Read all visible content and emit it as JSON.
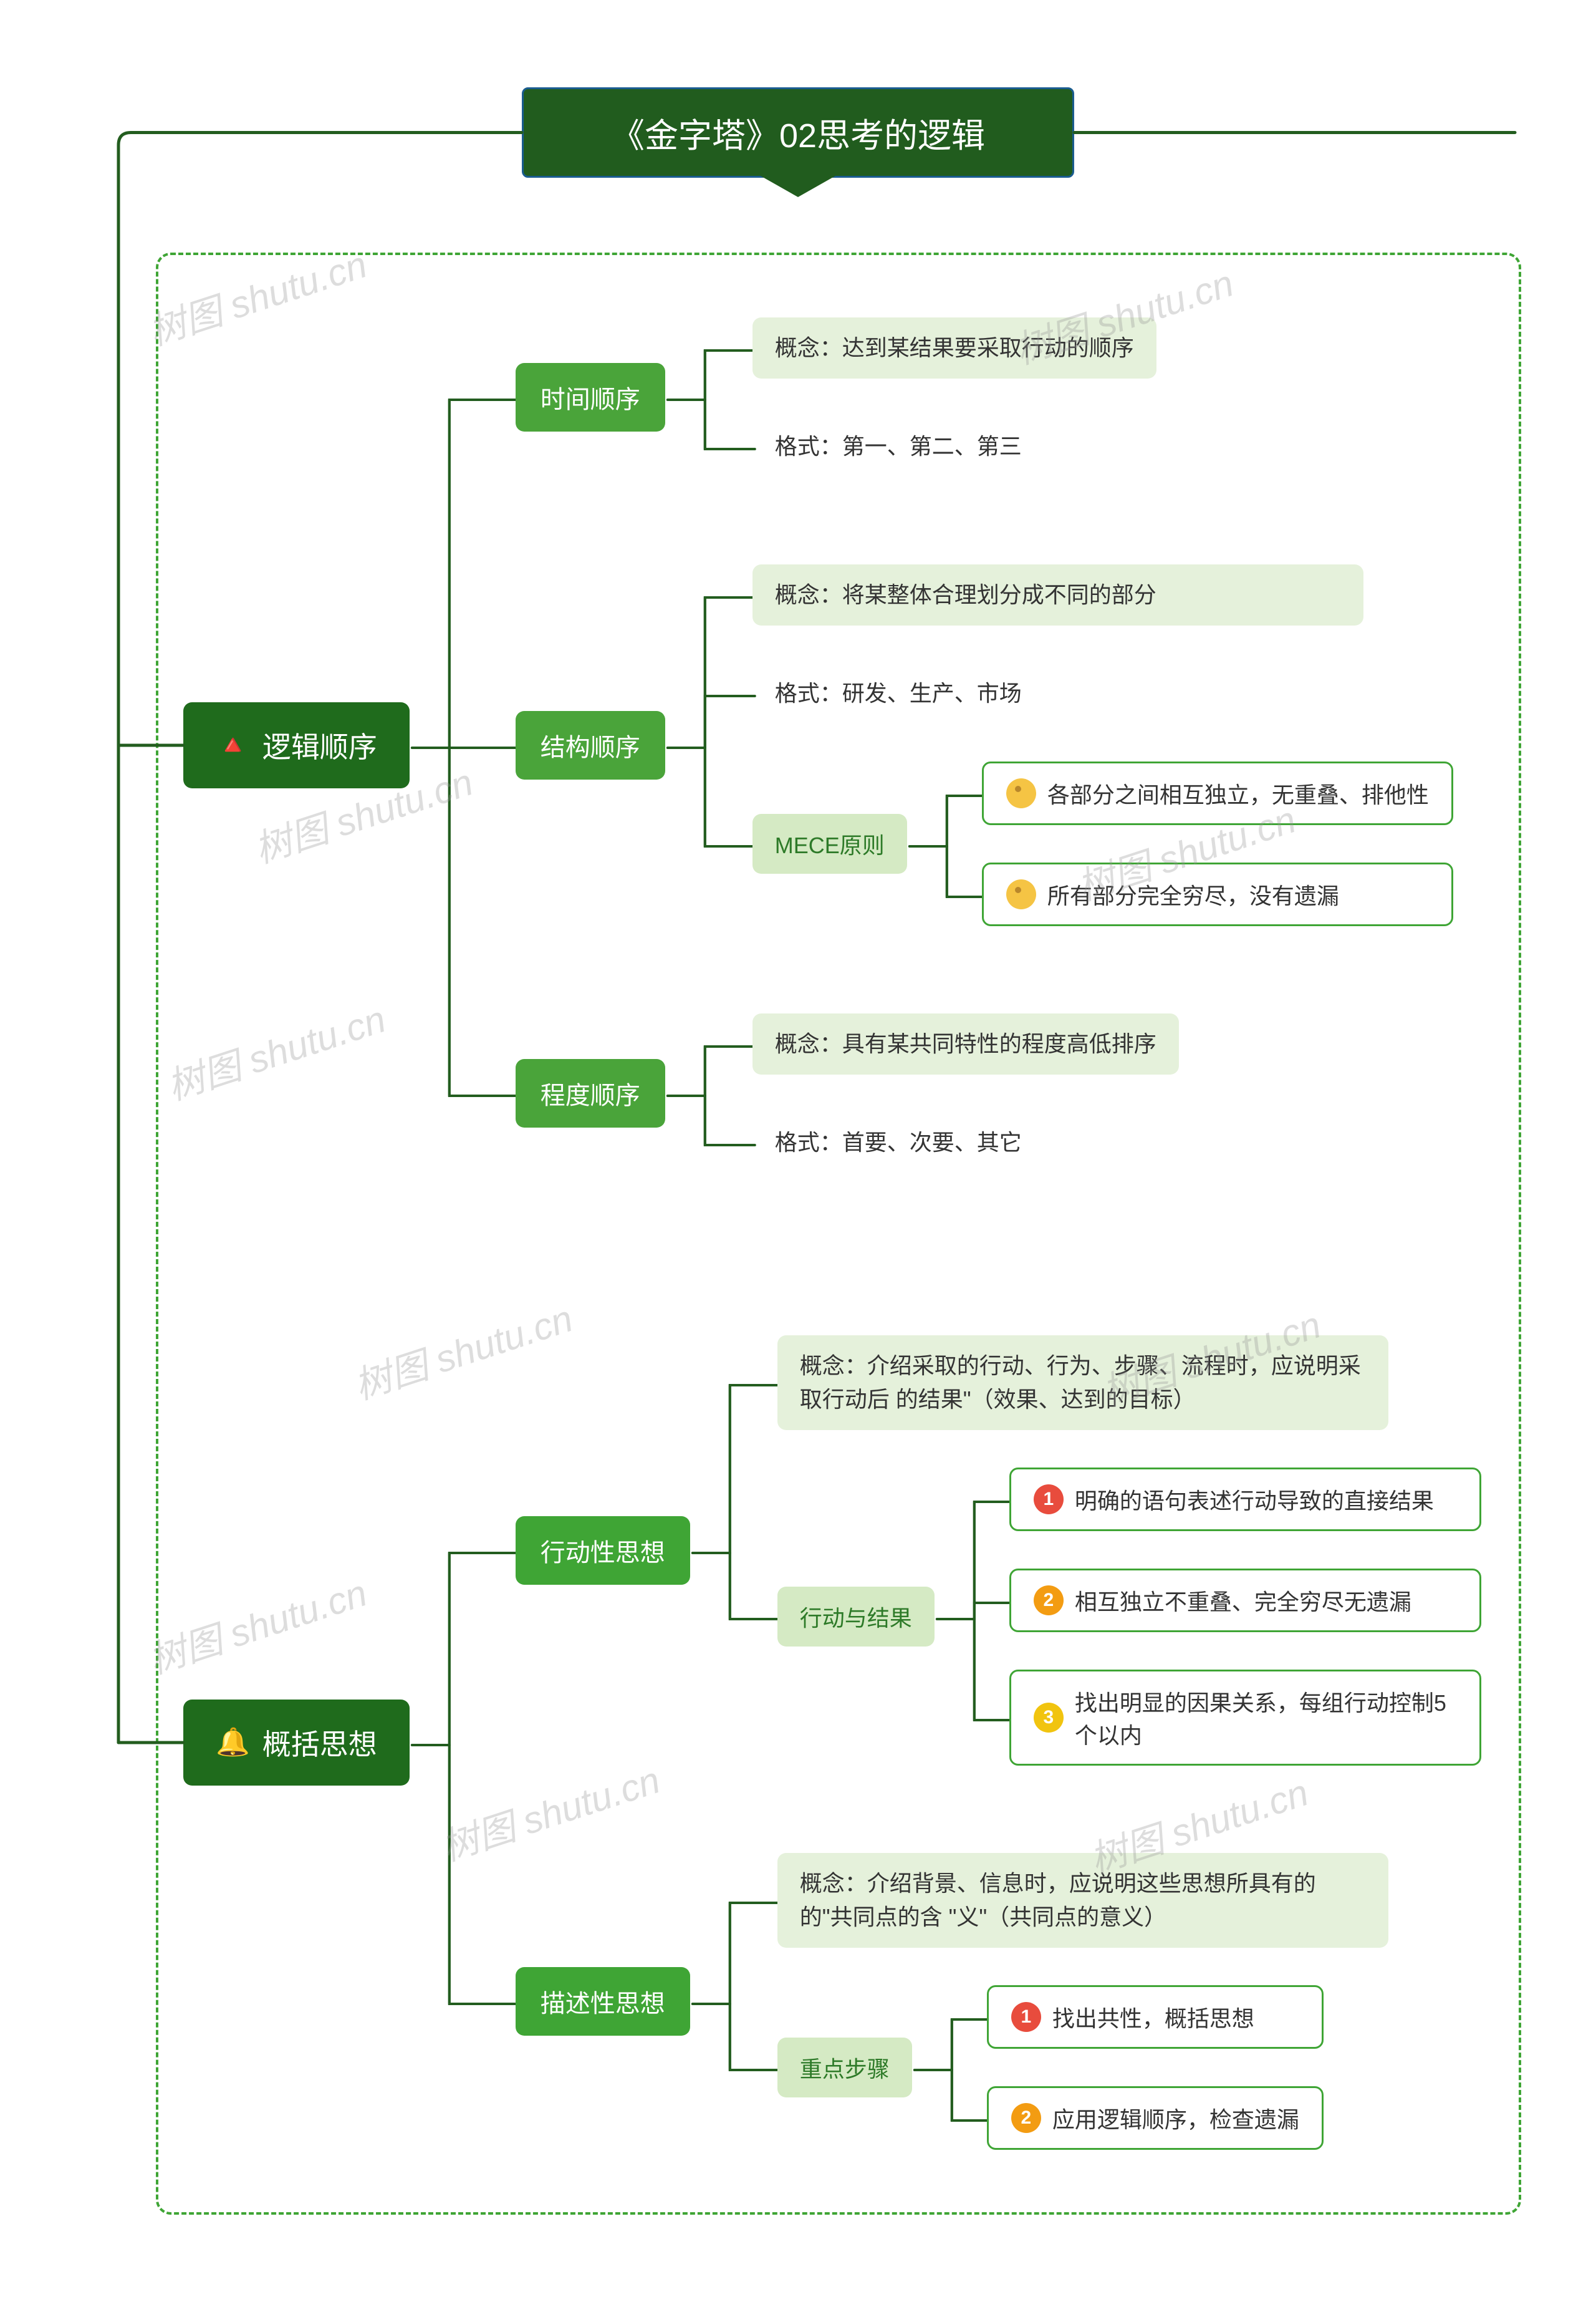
{
  "title": "《金字塔》02思考的逻辑",
  "colors": {
    "title_bg": "#215c1e",
    "l1_bg": "#1f6b1c",
    "l2_time": "#4aa43a",
    "l2_struct": "#4aa43a",
    "l2_degree": "#4aa43a",
    "l2_action": "#3fa535",
    "l2_desc": "#3fa535",
    "l3_mece_bg": "#d5eac4",
    "l3_mece_text": "#2d7a28",
    "l3_actres_bg": "#d5eac4",
    "l3_actres_text": "#2d7a28",
    "l3_step_bg": "#d5eac4",
    "l3_step_text": "#2d7a28",
    "leaf_bg": "#e5f1db",
    "border_green": "#3fa535",
    "connector": "#235d1f",
    "dash_border": "#3fa535",
    "circ_red": "#e84c3d",
    "circ_orange": "#f39c12",
    "circ_yellow": "#f1c40f",
    "circ_dot": "#f5c444"
  },
  "fontsize": {
    "title": 54,
    "l1": 46,
    "l2": 40,
    "l3": 36,
    "leaf": 36
  },
  "watermark_text": "树图 shutu.cn",
  "sections": [
    {
      "icon": "🔺",
      "label": "逻辑顺序",
      "children": [
        {
          "label": "时间顺序",
          "bg": "#4aa43a",
          "leaves": [
            {
              "text": "概念：达到某结果要采取行动的顺序",
              "style": "bg-e9"
            },
            {
              "text": "格式：第一、第二、第三",
              "style": "plain"
            }
          ]
        },
        {
          "label": "结构顺序",
          "bg": "#4aa43a",
          "leaves": [
            {
              "text": "概念：将某整体合理划分成不同的部分",
              "style": "bg-e9"
            },
            {
              "text": "格式：研发、生产、市场",
              "style": "plain"
            }
          ],
          "sub": {
            "label": "MECE原则",
            "bg": "#d5eac4",
            "color": "#2d7a28",
            "leaves": [
              {
                "icon": "dot",
                "text": "各部分之间相互独立，无重叠、排他性"
              },
              {
                "icon": "dot",
                "text": "所有部分完全穷尽，没有遗漏"
              }
            ]
          }
        },
        {
          "label": "程度顺序",
          "bg": "#4aa43a",
          "leaves": [
            {
              "text": "概念：具有某共同特性的程度高低排序",
              "style": "bg-e9"
            },
            {
              "text": "格式：首要、次要、其它",
              "style": "plain"
            }
          ]
        }
      ]
    },
    {
      "icon": "🔔",
      "label": "概括思想",
      "children": [
        {
          "label": "行动性思想",
          "bg": "#3fa535",
          "leaves": [
            {
              "text": "概念：介绍采取的行动、行为、步骤、流程时，应说明采取行动后 的结果\"（效果、达到的目标）",
              "style": "bg-e9"
            }
          ],
          "sub": {
            "label": "行动与结果",
            "bg": "#d5eac4",
            "color": "#2d7a28",
            "leaves": [
              {
                "icon": "1",
                "iconStyle": "circ-red",
                "text": "明确的语句表述行动导致的直接结果"
              },
              {
                "icon": "2",
                "iconStyle": "circ-orange",
                "text": "相互独立不重叠、完全穷尽无遗漏"
              },
              {
                "icon": "3",
                "iconStyle": "circ-yellow",
                "text": "找出明显的因果关系，每组行动控制5个以内"
              }
            ]
          }
        },
        {
          "label": "描述性思想",
          "bg": "#3fa535",
          "leaves": [
            {
              "text": "概念：介绍背景、信息时，应说明这些思想所具有的的\"共同点的含 \"义\"（共同点的意义）",
              "style": "bg-e9"
            }
          ],
          "sub": {
            "label": "重点步骤",
            "bg": "#d5eac4",
            "color": "#2d7a28",
            "leaves": [
              {
                "icon": "1",
                "iconStyle": "circ-red",
                "text": "找出共性，概括思想"
              },
              {
                "icon": "2",
                "iconStyle": "circ-orange",
                "text": "应用逻辑顺序，检查遗漏"
              }
            ]
          }
        }
      ]
    }
  ]
}
